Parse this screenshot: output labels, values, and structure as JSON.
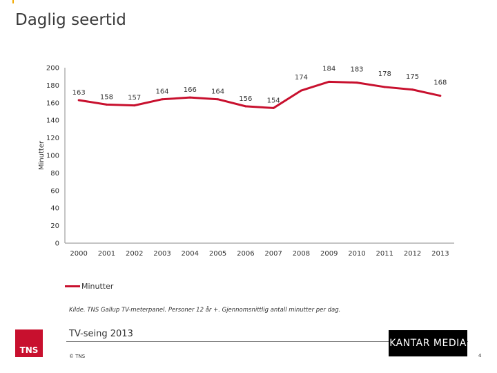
{
  "page": {
    "title": "Daglig seertid",
    "source_note": "Kilde. TNS Gallup TV-meterpanel. Personer 12 år +. Gjennomsnittlig antall minutter per dag.",
    "footer_title": "TV-seing 2013",
    "copyright": "© TNS",
    "tns_logo_text": "TNS",
    "kantar_logo_text": "KANTAR MEDIA",
    "page_number": "4"
  },
  "colors": {
    "series": "#c8102e",
    "axis": "#888888",
    "logo_red": "#c8102e"
  },
  "chart_data": {
    "type": "line",
    "title": "",
    "xlabel": "",
    "ylabel": "Minutter",
    "x": [
      "2000",
      "2001",
      "2002",
      "2003",
      "2004",
      "2005",
      "2006",
      "2007",
      "2008",
      "2009",
      "2010",
      "2011",
      "2012",
      "2013"
    ],
    "series": [
      {
        "name": "Minutter",
        "values": [
          163,
          158,
          157,
          164,
          166,
          164,
          156,
          154,
          174,
          184,
          183,
          178,
          175,
          168
        ]
      }
    ],
    "ylim": [
      0,
      200
    ],
    "yticks": [
      0,
      20,
      40,
      60,
      80,
      100,
      120,
      140,
      160,
      180,
      200
    ],
    "grid": false,
    "legend_position": "bottom-left",
    "data_labels": true
  }
}
